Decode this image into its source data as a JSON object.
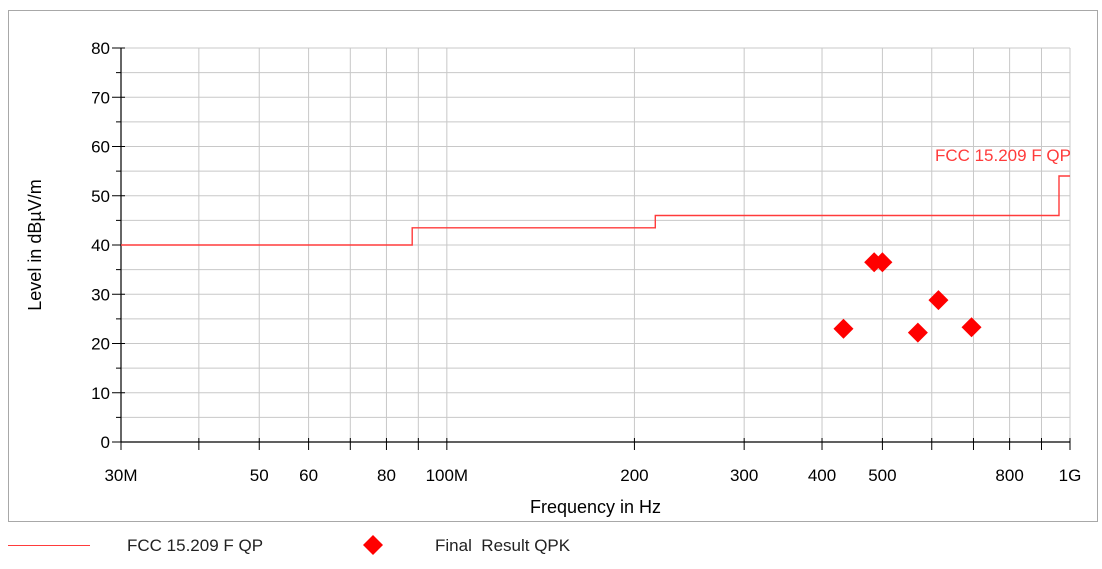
{
  "chart_data": {
    "type": "line",
    "title": "",
    "xlabel": "Frequency in Hz",
    "ylabel": "Level in dBµV/m",
    "x_scale": "log",
    "xlim": [
      30000000,
      1000000000
    ],
    "ylim": [
      0,
      80
    ],
    "grid": true,
    "x_ticks": [
      {
        "value": 30000000,
        "label": "30M"
      },
      {
        "value": 50000000,
        "label": "50"
      },
      {
        "value": 60000000,
        "label": "60"
      },
      {
        "value": 80000000,
        "label": "80"
      },
      {
        "value": 100000000,
        "label": "100M"
      },
      {
        "value": 200000000,
        "label": "200"
      },
      {
        "value": 300000000,
        "label": "300"
      },
      {
        "value": 400000000,
        "label": "400"
      },
      {
        "value": 500000000,
        "label": "500"
      },
      {
        "value": 800000000,
        "label": "800"
      },
      {
        "value": 1000000000,
        "label": "1G"
      }
    ],
    "x_minor_ticks": [
      40000000,
      70000000,
      90000000,
      600000000,
      700000000,
      900000000
    ],
    "y_ticks": [
      0,
      10,
      20,
      30,
      40,
      50,
      60,
      70,
      80
    ],
    "series": [
      {
        "name": "FCC 15.209 F QP",
        "kind": "step-line",
        "color": "#ff3b3b",
        "label_on_chart": "FCC 15.209 F QP",
        "points": [
          [
            30000000,
            40
          ],
          [
            88000000,
            40
          ],
          [
            88000000,
            43.5
          ],
          [
            216000000,
            43.5
          ],
          [
            216000000,
            46
          ],
          [
            960000000,
            46
          ],
          [
            960000000,
            54
          ],
          [
            1000000000,
            54
          ]
        ]
      },
      {
        "name": "Final  Result QPK",
        "kind": "scatter",
        "marker": "diamond",
        "color": "#ff0000",
        "points": [
          [
            433000000,
            23.0
          ],
          [
            485000000,
            36.5
          ],
          [
            500000000,
            36.5
          ],
          [
            570000000,
            22.2
          ],
          [
            615000000,
            28.8
          ],
          [
            695000000,
            23.3
          ]
        ]
      }
    ]
  },
  "legend": {
    "items": [
      {
        "label": "FCC 15.209 F QP"
      },
      {
        "label": "Final  Result QPK"
      }
    ]
  }
}
